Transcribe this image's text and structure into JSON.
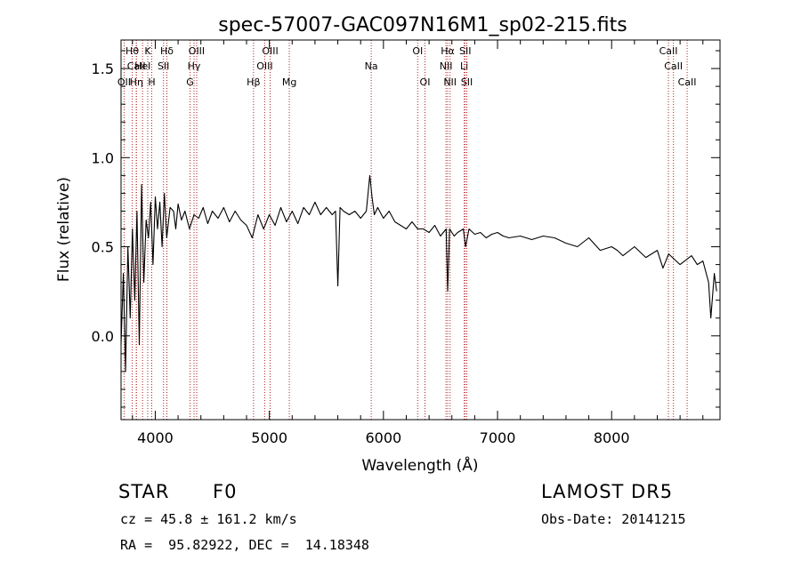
{
  "chart_data": {
    "type": "line",
    "title": "spec-57007-GAC097N16M1_sp02-215.fits",
    "xlabel": "Wavelength (Å)",
    "ylabel": "Flux (relative)",
    "xlim": [
      3700,
      8950
    ],
    "ylim": [
      -0.47,
      1.66
    ],
    "x_ticks": [
      4000,
      5000,
      6000,
      7000,
      8000
    ],
    "y_ticks": [
      0.0,
      0.5,
      1.0,
      1.5
    ],
    "x_tick_labels": [
      "4000",
      "5000",
      "6000",
      "7000",
      "8000"
    ],
    "y_tick_labels": [
      "0.0",
      "0.5",
      "1.0",
      "1.5"
    ],
    "grid": false,
    "series": [
      {
        "color": "#000000",
        "x": [
          3700,
          3720,
          3740,
          3760,
          3780,
          3800,
          3820,
          3840,
          3860,
          3880,
          3900,
          3920,
          3940,
          3960,
          3980,
          4000,
          4020,
          4040,
          4060,
          4080,
          4100,
          4130,
          4160,
          4180,
          4200,
          4230,
          4260,
          4300,
          4340,
          4380,
          4420,
          4460,
          4500,
          4550,
          4600,
          4650,
          4700,
          4750,
          4800,
          4850,
          4900,
          4950,
          5000,
          5050,
          5100,
          5150,
          5200,
          5250,
          5300,
          5350,
          5400,
          5450,
          5500,
          5550,
          5580,
          5600,
          5620,
          5650,
          5700,
          5750,
          5800,
          5850,
          5880,
          5900,
          5920,
          5950,
          6000,
          6050,
          6100,
          6150,
          6200,
          6250,
          6300,
          6350,
          6400,
          6450,
          6500,
          6550,
          6563,
          6580,
          6620,
          6650,
          6700,
          6720,
          6750,
          6800,
          6850,
          6900,
          6950,
          7000,
          7050,
          7100,
          7200,
          7300,
          7400,
          7500,
          7600,
          7700,
          7800,
          7900,
          8000,
          8050,
          8100,
          8200,
          8300,
          8400,
          8450,
          8500,
          8600,
          8700,
          8750,
          8800,
          8850,
          8870,
          8900,
          8920
        ],
        "y": [
          -0.05,
          0.35,
          -0.2,
          0.5,
          0.1,
          0.6,
          0.2,
          0.7,
          -0.05,
          0.85,
          0.3,
          0.65,
          0.55,
          0.75,
          0.4,
          0.78,
          0.6,
          0.75,
          0.5,
          0.8,
          0.55,
          0.72,
          0.7,
          0.6,
          0.74,
          0.65,
          0.7,
          0.6,
          0.68,
          0.66,
          0.72,
          0.63,
          0.7,
          0.66,
          0.72,
          0.64,
          0.7,
          0.65,
          0.62,
          0.55,
          0.68,
          0.6,
          0.68,
          0.62,
          0.72,
          0.64,
          0.7,
          0.63,
          0.72,
          0.68,
          0.75,
          0.68,
          0.72,
          0.68,
          0.7,
          0.28,
          0.72,
          0.7,
          0.68,
          0.7,
          0.66,
          0.7,
          0.9,
          0.78,
          0.68,
          0.72,
          0.66,
          0.7,
          0.64,
          0.62,
          0.6,
          0.64,
          0.6,
          0.6,
          0.58,
          0.62,
          0.56,
          0.6,
          0.25,
          0.6,
          0.56,
          0.58,
          0.6,
          0.5,
          0.6,
          0.57,
          0.58,
          0.55,
          0.57,
          0.58,
          0.56,
          0.55,
          0.56,
          0.54,
          0.56,
          0.55,
          0.52,
          0.5,
          0.55,
          0.48,
          0.5,
          0.48,
          0.45,
          0.5,
          0.44,
          0.48,
          0.38,
          0.46,
          0.4,
          0.45,
          0.4,
          0.42,
          0.3,
          0.1,
          0.35,
          0.25
        ]
      }
    ],
    "lines": [
      {
        "label": "Hθ",
        "x": 3798,
        "row": 1
      },
      {
        "label": "CaII",
        "x": 3834,
        "row": 2
      },
      {
        "label": "OII",
        "x": 3727,
        "row": 3
      },
      {
        "label": "Hη",
        "x": 3835,
        "row": 3
      },
      {
        "label": "K",
        "x": 3934,
        "row": 1
      },
      {
        "label": "HeI",
        "x": 3889,
        "row": 2
      },
      {
        "label": "H",
        "x": 3969,
        "row": 3
      },
      {
        "label": "Hδ",
        "x": 4102,
        "row": 1
      },
      {
        "label": "SII",
        "x": 4072,
        "row": 2
      },
      {
        "label": "OIII",
        "x": 4363,
        "row": 1
      },
      {
        "label": "Hγ",
        "x": 4340,
        "row": 2
      },
      {
        "label": "G",
        "x": 4305,
        "row": 3
      },
      {
        "label": "OIII",
        "x": 5007,
        "row": 1
      },
      {
        "label": "OIII",
        "x": 4959,
        "row": 2
      },
      {
        "label": "Hβ",
        "x": 4861,
        "row": 3
      },
      {
        "label": "Mg",
        "x": 5175,
        "row": 3
      },
      {
        "label": "Na",
        "x": 5893,
        "row": 2
      },
      {
        "label": "OI",
        "x": 6300,
        "row": 1
      },
      {
        "label": "OI",
        "x": 6364,
        "row": 3
      },
      {
        "label": "Hα",
        "x": 6563,
        "row": 1
      },
      {
        "label": "NII",
        "x": 6548,
        "row": 2
      },
      {
        "label": "NII",
        "x": 6584,
        "row": 3
      },
      {
        "label": "SII",
        "x": 6717,
        "row": 1
      },
      {
        "label": "Li",
        "x": 6708,
        "row": 2
      },
      {
        "label": "SII",
        "x": 6731,
        "row": 3
      },
      {
        "label": "CaII",
        "x": 8498,
        "row": 1
      },
      {
        "label": "CaII",
        "x": 8542,
        "row": 2
      },
      {
        "label": "CaII",
        "x": 8662,
        "row": 3
      }
    ]
  },
  "info": {
    "object_class": "STAR",
    "subclass": "F0",
    "redshift": "cz = 45.8 ± 161.2 km/s",
    "coords": "RA =  95.82922, DEC =  14.18348",
    "survey": "LAMOST DR5",
    "obs_date": "Obs-Date: 20141215"
  }
}
